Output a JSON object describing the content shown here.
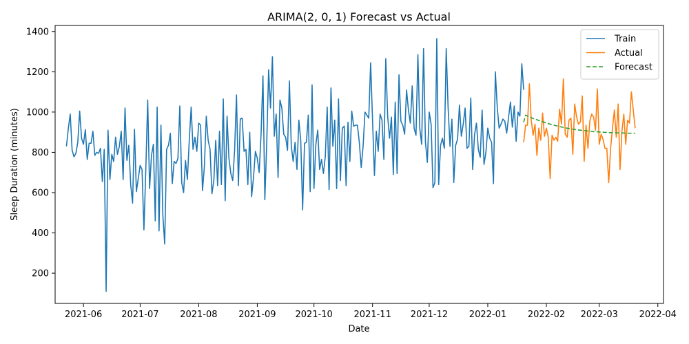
{
  "chart_data": {
    "type": "line",
    "title": "ARIMA(2, 0, 1) Forecast vs Actual",
    "xlabel": "Date",
    "ylabel": "Sleep Duration (minutes)",
    "xlim": [
      "2021-05-17",
      "2022-04-04"
    ],
    "ylim": [
      50,
      1430
    ],
    "x_ticks": [
      "2021-06-01",
      "2021-07-01",
      "2021-08-01",
      "2021-09-01",
      "2021-10-01",
      "2021-11-01",
      "2021-12-01",
      "2022-01-01",
      "2022-02-01",
      "2022-03-01",
      "2022-04-01"
    ],
    "x_tick_labels": [
      "2021-06",
      "2021-07",
      "2021-08",
      "2021-09",
      "2021-10",
      "2021-11",
      "2021-12",
      "2022-01",
      "2022-02",
      "2022-03",
      "2022-04"
    ],
    "y_ticks": [
      200,
      400,
      600,
      800,
      1000,
      1200,
      1400
    ],
    "y_tick_labels": [
      "200",
      "400",
      "600",
      "800",
      "1000",
      "1200",
      "1400"
    ],
    "grid": false,
    "legend_position": "top-right",
    "series": [
      {
        "name": "Train",
        "color": "#1f77b4",
        "style": "solid",
        "x_start": "2021-05-23",
        "y": [
          830,
          920,
          990,
          810,
          778,
          795,
          850,
          1005,
          870,
          840,
          913,
          765,
          845,
          845,
          905,
          785,
          800,
          795,
          820,
          655,
          815,
          110,
          910,
          665,
          790,
          755,
          875,
          790,
          830,
          905,
          665,
          1020,
          760,
          835,
          640,
          548,
          915,
          605,
          670,
          735,
          715,
          415,
          715,
          1060,
          620,
          785,
          840,
          460,
          1025,
          410,
          935,
          490,
          345,
          815,
          835,
          895,
          645,
          755,
          745,
          770,
          1030,
          650,
          600,
          760,
          665,
          860,
          1025,
          815,
          875,
          805,
          945,
          935,
          610,
          730,
          980,
          860,
          815,
          595,
          660,
          860,
          635,
          905,
          640,
          1065,
          560,
          980,
          770,
          695,
          660,
          810,
          1085,
          635,
          965,
          970,
          805,
          815,
          640,
          900,
          580,
          675,
          805,
          770,
          700,
          890,
          1180,
          565,
          845,
          1210,
          1020,
          1275,
          880,
          990,
          675,
          1060,
          1020,
          890,
          875,
          810,
          1155,
          830,
          755,
          850,
          715,
          960,
          860,
          515,
          845,
          850,
          985,
          605,
          1135,
          620,
          840,
          910,
          715,
          765,
          695,
          780,
          1025,
          615,
          1120,
          830,
          960,
          620,
          1065,
          660,
          920,
          930,
          635,
          950,
          755,
          1005,
          930,
          935,
          935,
          850,
          725,
          830,
          1000,
          985,
          970,
          1245,
          960,
          685,
          905,
          805,
          990,
          960,
          765,
          1265,
          980,
          870,
          975,
          690,
          1050,
          695,
          1185,
          955,
          935,
          890,
          1110,
          1010,
          945,
          1130,
          920,
          885,
          1285,
          920,
          840,
          1315,
          850,
          750,
          1000,
          940,
          625,
          650,
          1365,
          640,
          835,
          870,
          820,
          1315,
          1020,
          830,
          965,
          650,
          835,
          865,
          1035,
          880,
          940,
          1020,
          820,
          830,
          1070,
          715,
          890,
          945,
          815,
          775,
          1010,
          740,
          800,
          920,
          870,
          850,
          645,
          1200,
          1025,
          920,
          940,
          965,
          955,
          895,
          975,
          1050,
          925,
          1030,
          855,
          1000,
          980,
          1240,
          1110
        ]
      },
      {
        "name": "Actual",
        "color": "#ff7f0e",
        "style": "solid",
        "x_start": "2022-01-20",
        "y": [
          850,
          935,
          935,
          1140,
          960,
          885,
          940,
          785,
          920,
          860,
          995,
          880,
          920,
          875,
          670,
          885,
          860,
          875,
          855,
          1015,
          940,
          1165,
          890,
          875,
          960,
          970,
          790,
          1040,
          975,
          940,
          950,
          1080,
          755,
          935,
          820,
          955,
          990,
          975,
          910,
          1115,
          840,
          890,
          865,
          820,
          820,
          650,
          820,
          920,
          1010,
          875,
          1040,
          715,
          905,
          990,
          840,
          960,
          945,
          1100,
          1010,
          920
        ]
      },
      {
        "name": "Forecast",
        "color": "#2ca02c",
        "style": "dashed",
        "x_start": "2022-01-20",
        "y": [
          950,
          985,
          980,
          976,
          972,
          968,
          965,
          962,
          958,
          955,
          952,
          949,
          946,
          943,
          940,
          938,
          935,
          933,
          930,
          928,
          926,
          924,
          922,
          920,
          918,
          917,
          915,
          914,
          912,
          911,
          910,
          909,
          908,
          907,
          906,
          905,
          904,
          903,
          902,
          902,
          901,
          900,
          900,
          899,
          899,
          898,
          898,
          897,
          897,
          897,
          896,
          896,
          896,
          896,
          895,
          895,
          895,
          895,
          895,
          895
        ]
      }
    ]
  }
}
